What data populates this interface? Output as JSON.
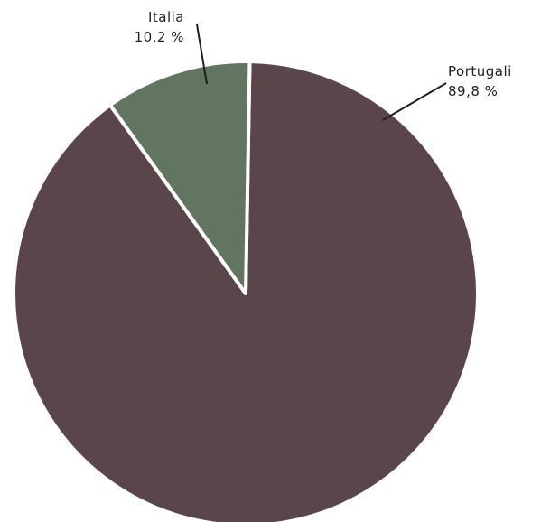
{
  "chart_data": {
    "type": "pie",
    "slices": [
      {
        "label": "Portugali",
        "value": 89.8,
        "value_label": "89,8 %",
        "color": "#5a454b"
      },
      {
        "label": "Italia",
        "value": 10.2,
        "value_label": "10,2 %",
        "color": "#627561"
      }
    ],
    "start_angle_deg": 1,
    "direction": "clockwise",
    "separator_color": "#ffffff"
  }
}
